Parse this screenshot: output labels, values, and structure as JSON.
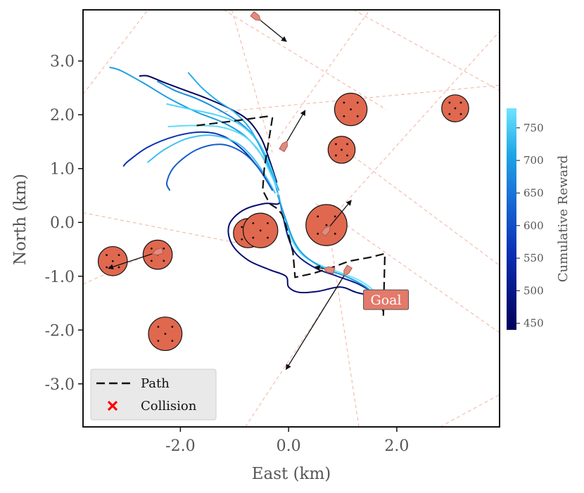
{
  "chart_data": {
    "type": "line",
    "xlabel": "East (km)",
    "ylabel": "North (km)",
    "xlim": [
      -3.8,
      3.9
    ],
    "ylim": [
      -3.8,
      3.95
    ],
    "x_ticks": [
      -2.0,
      0.0,
      2.0
    ],
    "y_ticks": [
      3.0,
      2.0,
      1.0,
      0.0,
      -1.0,
      -2.0,
      -3.0
    ],
    "x_tick_labels": [
      "-2.0",
      "0.0",
      "2.0"
    ],
    "y_tick_labels": [
      "3.0",
      "2.0",
      "1.0",
      "0.0",
      "-1.0",
      "-2.0",
      "-3.0"
    ],
    "grid": false,
    "legend": {
      "placement": "lower-left",
      "entries": [
        {
          "label": "Path",
          "style": "dashed-line",
          "color": "#111111"
        },
        {
          "label": "Collision",
          "style": "x-marker",
          "color": "#ff0000"
        }
      ]
    },
    "colorbar": {
      "label": "Cumulative Reward",
      "min": 440,
      "max": 780,
      "ticks": [
        450,
        500,
        550,
        600,
        650,
        700,
        750
      ],
      "tick_labels": [
        "450",
        "500",
        "550",
        "600",
        "650",
        "700",
        "750"
      ],
      "color_low": "#00005a",
      "color_mid": "#1a6fd6",
      "color_high": "#6ee4ff"
    },
    "goal": {
      "label": "Goal",
      "x": 1.8,
      "y": -1.45,
      "color": "#e37a6a"
    },
    "path": [
      [
        -1.7,
        1.8
      ],
      [
        -0.9,
        1.9
      ],
      [
        -0.4,
        1.97
      ],
      [
        -0.3,
        1.94
      ],
      [
        -0.45,
        1.0
      ],
      [
        -0.48,
        0.6
      ],
      [
        -0.35,
        0.35
      ],
      [
        -0.2,
        0.25
      ],
      [
        -0.12,
        0.15
      ],
      [
        -0.05,
        -0.05
      ],
      [
        0.08,
        -0.55
      ],
      [
        0.12,
        -1.02
      ],
      [
        0.45,
        -0.95
      ],
      [
        0.85,
        -0.82
      ],
      [
        1.12,
        -0.72
      ],
      [
        1.5,
        -0.65
      ],
      [
        1.78,
        -0.58
      ],
      [
        1.75,
        -1.8
      ]
    ],
    "obstacles": [
      {
        "x": 1.15,
        "y": 2.1,
        "r": 0.3
      },
      {
        "x": 0.98,
        "y": 1.35,
        "r": 0.25
      },
      {
        "x": 3.08,
        "y": 2.12,
        "r": 0.25
      },
      {
        "x": 0.7,
        "y": -0.05,
        "r": 0.38
      },
      {
        "x": -0.75,
        "y": -0.2,
        "r": 0.27
      },
      {
        "x": -0.52,
        "y": -0.15,
        "r": 0.32
      },
      {
        "x": -2.42,
        "y": -0.6,
        "r": 0.27
      },
      {
        "x": -3.25,
        "y": -0.72,
        "r": 0.27
      },
      {
        "x": -2.28,
        "y": -2.07,
        "r": 0.31
      }
    ],
    "vessels": [
      {
        "x": -0.6,
        "y": 3.82,
        "dx": 0.55,
        "dy": -0.45
      },
      {
        "x": -0.08,
        "y": 1.42,
        "dx": 0.38,
        "dy": 0.65
      },
      {
        "x": 0.7,
        "y": -0.15,
        "dx": 0.45,
        "dy": 0.55
      },
      {
        "x": -2.42,
        "y": -0.55,
        "dx": -0.9,
        "dy": -0.3
      },
      {
        "x": 0.75,
        "y": -0.88,
        "dx": -0.25,
        "dy": 0.05
      },
      {
        "x": 1.08,
        "y": -0.9,
        "dx": -1.12,
        "dy": -1.82
      }
    ],
    "trajectories": [
      {
        "reward": 450,
        "points": [
          [
            -2.75,
            2.72
          ],
          [
            -2.6,
            2.72
          ],
          [
            -2.3,
            2.6
          ],
          [
            -1.9,
            2.45
          ],
          [
            -1.5,
            2.3
          ],
          [
            -1.1,
            2.12
          ],
          [
            -0.75,
            1.9
          ],
          [
            -0.5,
            1.55
          ],
          [
            -0.35,
            1.15
          ],
          [
            -0.22,
            0.75
          ]
        ]
      },
      {
        "reward": 700,
        "points": [
          [
            -3.3,
            2.88
          ],
          [
            -3.1,
            2.82
          ],
          [
            -2.7,
            2.6
          ],
          [
            -2.2,
            2.3
          ],
          [
            -1.7,
            2.05
          ],
          [
            -1.2,
            1.85
          ],
          [
            -0.8,
            1.6
          ],
          [
            -0.5,
            1.25
          ],
          [
            -0.3,
            0.85
          ],
          [
            -0.2,
            0.55
          ]
        ]
      },
      {
        "reward": 680,
        "points": [
          [
            -2.42,
            2.62
          ],
          [
            -2.1,
            2.45
          ],
          [
            -1.7,
            2.3
          ],
          [
            -1.3,
            2.1
          ],
          [
            -0.9,
            1.85
          ],
          [
            -0.6,
            1.55
          ],
          [
            -0.38,
            1.15
          ],
          [
            -0.22,
            0.7
          ]
        ]
      },
      {
        "reward": 760,
        "points": [
          [
            -2.25,
            2.2
          ],
          [
            -1.8,
            2.1
          ],
          [
            -1.35,
            2.0
          ],
          [
            -0.95,
            1.85
          ],
          [
            -0.65,
            1.6
          ],
          [
            -0.42,
            1.25
          ],
          [
            -0.25,
            0.8
          ]
        ]
      },
      {
        "reward": 720,
        "points": [
          [
            -1.85,
            2.78
          ],
          [
            -1.6,
            2.5
          ],
          [
            -1.3,
            2.25
          ],
          [
            -1.0,
            2.05
          ],
          [
            -0.72,
            1.75
          ],
          [
            -0.5,
            1.35
          ],
          [
            -0.3,
            0.9
          ],
          [
            -0.18,
            0.6
          ]
        ]
      },
      {
        "reward": 770,
        "points": [
          [
            -2.22,
            1.78
          ],
          [
            -1.8,
            1.8
          ],
          [
            -1.3,
            1.78
          ],
          [
            -0.9,
            1.65
          ],
          [
            -0.6,
            1.4
          ],
          [
            -0.4,
            1.05
          ],
          [
            -0.22,
            0.65
          ]
        ]
      },
      {
        "reward": 560,
        "points": [
          [
            -3.05,
            1.05
          ],
          [
            -2.95,
            1.15
          ],
          [
            -2.6,
            1.4
          ],
          [
            -2.1,
            1.6
          ],
          [
            -1.6,
            1.68
          ],
          [
            -1.2,
            1.6
          ],
          [
            -0.85,
            1.35
          ],
          [
            -0.55,
            1.0
          ],
          [
            -0.3,
            0.6
          ]
        ]
      },
      {
        "reward": 740,
        "points": [
          [
            -2.6,
            1.12
          ],
          [
            -2.3,
            1.35
          ],
          [
            -1.9,
            1.55
          ],
          [
            -1.45,
            1.62
          ],
          [
            -1.0,
            1.5
          ],
          [
            -0.7,
            1.25
          ],
          [
            -0.45,
            0.9
          ],
          [
            -0.25,
            0.55
          ]
        ]
      },
      {
        "reward": 620,
        "points": [
          [
            -2.2,
            0.6
          ],
          [
            -2.25,
            0.75
          ],
          [
            -2.1,
            1.05
          ],
          [
            -1.7,
            1.35
          ],
          [
            -1.25,
            1.45
          ],
          [
            -0.85,
            1.3
          ],
          [
            -0.55,
            1.0
          ],
          [
            -0.3,
            0.6
          ]
        ]
      },
      {
        "reward": 470,
        "points": [
          [
            -0.2,
            0.55
          ],
          [
            -0.18,
            0.35
          ],
          [
            -0.45,
            0.35
          ],
          [
            -0.85,
            0.22
          ],
          [
            -1.1,
            -0.05
          ],
          [
            -1.05,
            -0.4
          ],
          [
            -0.75,
            -0.7
          ],
          [
            -0.35,
            -0.88
          ],
          [
            -0.05,
            -1.0
          ],
          [
            0.0,
            -1.2
          ],
          [
            0.2,
            -1.3
          ],
          [
            0.55,
            -1.28
          ],
          [
            0.95,
            -1.2
          ],
          [
            1.25,
            -1.3
          ],
          [
            1.6,
            -1.4
          ],
          [
            1.75,
            -1.65
          ]
        ]
      },
      {
        "reward": 520,
        "points": [
          [
            -0.18,
            0.5
          ],
          [
            -0.1,
            0.1
          ],
          [
            0.0,
            -0.3
          ],
          [
            0.15,
            -0.6
          ],
          [
            0.5,
            -0.85
          ],
          [
            0.9,
            -1.0
          ],
          [
            1.3,
            -1.15
          ],
          [
            1.6,
            -1.35
          ],
          [
            1.75,
            -1.6
          ]
        ]
      },
      {
        "reward": 780,
        "points": [
          [
            -0.2,
            0.55
          ],
          [
            -0.08,
            0.1
          ],
          [
            0.05,
            -0.3
          ],
          [
            0.25,
            -0.6
          ],
          [
            0.6,
            -0.8
          ],
          [
            1.0,
            -0.95
          ],
          [
            1.35,
            -1.1
          ],
          [
            1.6,
            -1.3
          ],
          [
            1.75,
            -1.55
          ]
        ]
      },
      {
        "reward": 700,
        "points": [
          [
            -0.2,
            0.5
          ],
          [
            -0.05,
            0.05
          ],
          [
            0.1,
            -0.35
          ],
          [
            0.3,
            -0.62
          ],
          [
            0.65,
            -0.85
          ],
          [
            1.05,
            -1.0
          ],
          [
            1.4,
            -1.18
          ],
          [
            1.65,
            -1.4
          ]
        ]
      }
    ],
    "dashed_rays": [
      [
        [
          -3.8,
          2.38
        ],
        [
          -2.6,
          3.95
        ]
      ],
      [
        [
          -1.2,
          3.95
        ],
        [
          1.8,
          2.1
        ]
      ],
      [
        [
          -0.72,
          3.95
        ],
        [
          1.6,
          3.95
        ]
      ],
      [
        [
          -1.05,
          3.95
        ],
        [
          -0.3,
          1.3
        ]
      ],
      [
        [
          -0.2,
          1.55
        ],
        [
          1.5,
          3.95
        ]
      ],
      [
        [
          -1.3,
          2.05
        ],
        [
          3.9,
          2.55
        ]
      ],
      [
        [
          1.2,
          3.95
        ],
        [
          3.9,
          2.45
        ]
      ],
      [
        [
          0.9,
          0.2
        ],
        [
          3.9,
          3.55
        ]
      ],
      [
        [
          1.1,
          1.3
        ],
        [
          3.9,
          -0.8
        ]
      ],
      [
        [
          3.9,
          -2.05
        ],
        [
          0.5,
          0.35
        ]
      ],
      [
        [
          -3.8,
          0.18
        ],
        [
          -0.6,
          -0.45
        ]
      ],
      [
        [
          -3.8,
          -1.15
        ],
        [
          -2.5,
          -0.55
        ]
      ],
      [
        [
          -0.8,
          -3.8
        ],
        [
          1.1,
          -0.9
        ]
      ],
      [
        [
          1.3,
          -3.8
        ],
        [
          0.75,
          -0.15
        ]
      ],
      [
        [
          2.8,
          -3.8
        ],
        [
          3.9,
          -3.2
        ]
      ]
    ]
  }
}
